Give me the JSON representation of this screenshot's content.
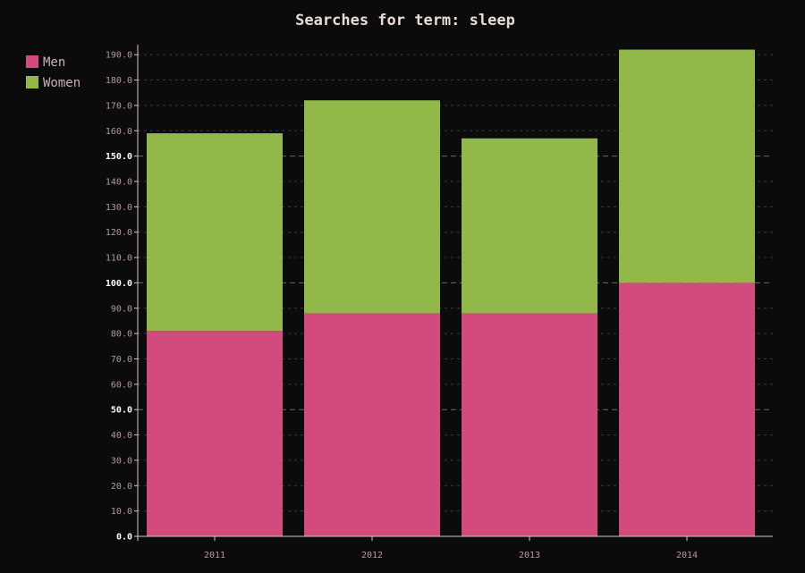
{
  "chart_data": {
    "type": "bar",
    "stacked": true,
    "title": "Searches for term: sleep",
    "categories": [
      "2011",
      "2012",
      "2013",
      "2014"
    ],
    "series": [
      {
        "name": "Men",
        "values": [
          81,
          88,
          88,
          100
        ],
        "color": "#d14b7d"
      },
      {
        "name": "Women",
        "values": [
          78,
          84,
          69,
          92
        ],
        "color": "#92b84a"
      }
    ],
    "ylim": [
      0,
      195
    ],
    "yticks": [
      "0.0",
      "10.0",
      "20.0",
      "30.0",
      "40.0",
      "50.0",
      "60.0",
      "70.0",
      "80.0",
      "90.0",
      "100.0",
      "110.0",
      "120.0",
      "130.0",
      "140.0",
      "150.0",
      "160.0",
      "170.0",
      "180.0",
      "190.0"
    ],
    "major_yticks": [
      "0.0",
      "50.0",
      "100.0",
      "150.0"
    ],
    "legend_position": "top-left",
    "grid": true,
    "background_color": "#0b0b0b",
    "text_color": "#e6dcd8"
  }
}
